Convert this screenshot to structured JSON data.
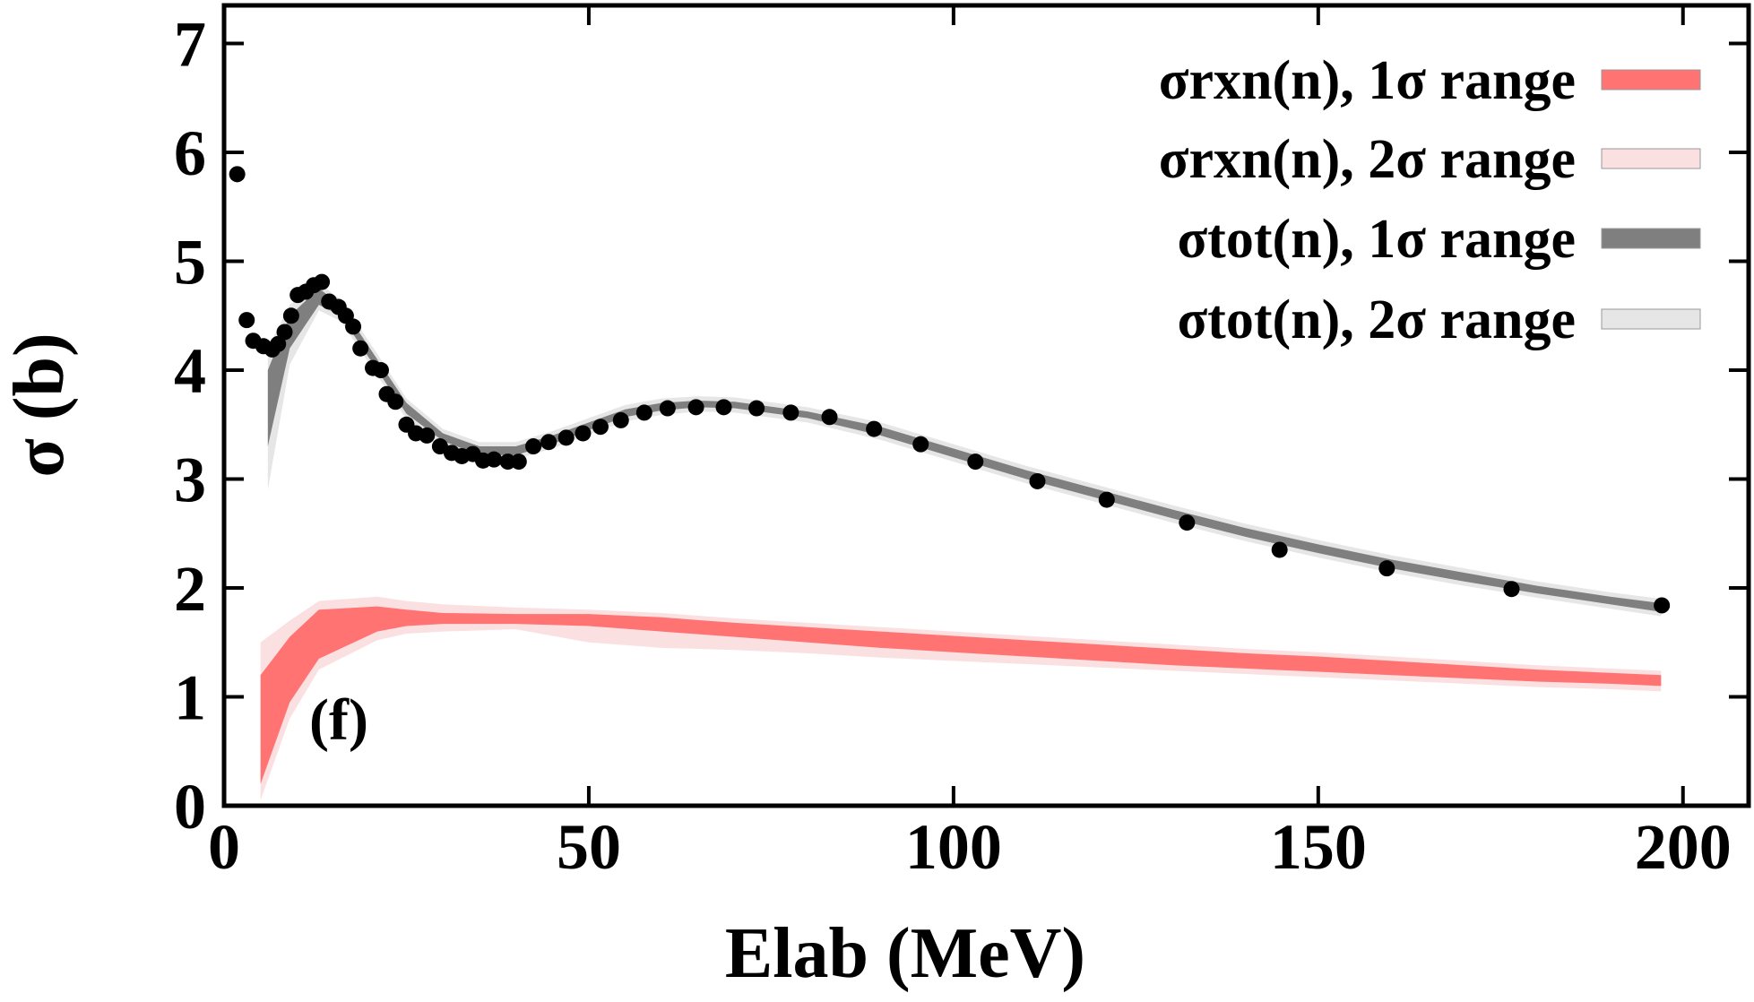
{
  "chart_data": {
    "type": "band-scatter",
    "x_label": "Elab (MeV)",
    "y_label": "σ (b)",
    "annotation": "(f)",
    "xlim": [
      0,
      209
    ],
    "ylim": [
      0,
      7.35
    ],
    "xticks": [
      0,
      50,
      100,
      150,
      200
    ],
    "yticks": [
      0,
      1,
      2,
      3,
      4,
      5,
      6,
      7
    ],
    "legend": "upper right",
    "series": [
      {
        "name": "σrxn(n), 2σ range",
        "color": "#fbe0e1",
        "x": [
          5,
          9,
          13,
          21,
          25,
          30,
          40,
          50,
          60,
          70,
          80,
          90,
          100,
          110,
          120,
          130,
          140,
          150,
          160,
          170,
          180,
          190,
          197
        ],
        "lower": [
          0.05,
          0.8,
          1.25,
          1.52,
          1.58,
          1.6,
          1.62,
          1.5,
          1.45,
          1.43,
          1.4,
          1.36,
          1.33,
          1.3,
          1.27,
          1.24,
          1.21,
          1.18,
          1.15,
          1.12,
          1.09,
          1.07,
          1.05
        ],
        "upper": [
          1.5,
          1.7,
          1.88,
          1.92,
          1.88,
          1.85,
          1.82,
          1.8,
          1.77,
          1.72,
          1.68,
          1.64,
          1.6,
          1.56,
          1.52,
          1.48,
          1.44,
          1.41,
          1.37,
          1.33,
          1.29,
          1.26,
          1.24
        ]
      },
      {
        "name": "σrxn(n), 1σ range",
        "color": "#ff7373",
        "x": [
          5,
          9,
          13,
          21,
          25,
          30,
          40,
          50,
          60,
          70,
          80,
          90,
          100,
          110,
          120,
          130,
          140,
          150,
          160,
          170,
          180,
          190,
          197
        ],
        "lower": [
          0.2,
          0.95,
          1.35,
          1.6,
          1.65,
          1.67,
          1.67,
          1.65,
          1.6,
          1.55,
          1.5,
          1.45,
          1.41,
          1.37,
          1.33,
          1.29,
          1.26,
          1.23,
          1.2,
          1.17,
          1.14,
          1.12,
          1.1
        ],
        "upper": [
          1.2,
          1.55,
          1.8,
          1.83,
          1.8,
          1.77,
          1.76,
          1.76,
          1.73,
          1.68,
          1.64,
          1.6,
          1.56,
          1.52,
          1.48,
          1.44,
          1.4,
          1.37,
          1.33,
          1.29,
          1.25,
          1.22,
          1.2
        ]
      },
      {
        "name": "σtot(n), 2σ range",
        "color": "#e6e6e6",
        "x": [
          6,
          9,
          13,
          16,
          21,
          25,
          30,
          35,
          40,
          45,
          50,
          55,
          60,
          65,
          70,
          80,
          90,
          100,
          110,
          120,
          130,
          140,
          150,
          160,
          170,
          180,
          190,
          197
        ],
        "lower": [
          2.9,
          4.05,
          4.55,
          4.45,
          3.95,
          3.55,
          3.31,
          3.18,
          3.18,
          3.28,
          3.41,
          3.53,
          3.59,
          3.62,
          3.61,
          3.52,
          3.36,
          3.16,
          2.96,
          2.78,
          2.6,
          2.43,
          2.28,
          2.14,
          2.02,
          1.91,
          1.81,
          1.74
        ],
        "upper": [
          4.2,
          4.6,
          4.8,
          4.65,
          4.15,
          3.74,
          3.46,
          3.34,
          3.34,
          3.44,
          3.56,
          3.68,
          3.74,
          3.76,
          3.75,
          3.66,
          3.52,
          3.32,
          3.12,
          2.94,
          2.76,
          2.59,
          2.44,
          2.3,
          2.18,
          2.06,
          1.96,
          1.9
        ]
      },
      {
        "name": "σtot(n), 1σ range",
        "color": "#7f7f7f",
        "x": [
          6,
          9,
          13,
          16,
          21,
          25,
          30,
          35,
          40,
          45,
          50,
          55,
          60,
          65,
          70,
          80,
          90,
          100,
          110,
          120,
          130,
          140,
          150,
          160,
          170,
          180,
          190,
          197
        ],
        "lower": [
          3.3,
          4.2,
          4.6,
          4.5,
          4.0,
          3.6,
          3.35,
          3.22,
          3.22,
          3.32,
          3.45,
          3.57,
          3.63,
          3.66,
          3.65,
          3.56,
          3.4,
          3.2,
          3.0,
          2.82,
          2.64,
          2.47,
          2.32,
          2.18,
          2.06,
          1.95,
          1.85,
          1.78
        ],
        "upper": [
          4.0,
          4.5,
          4.75,
          4.6,
          4.1,
          3.7,
          3.42,
          3.3,
          3.3,
          3.4,
          3.52,
          3.64,
          3.7,
          3.72,
          3.71,
          3.62,
          3.48,
          3.28,
          3.08,
          2.9,
          2.72,
          2.55,
          2.4,
          2.26,
          2.14,
          2.02,
          1.92,
          1.86
        ]
      }
    ],
    "legend_order": [
      1,
      0,
      3,
      2
    ],
    "points": {
      "color": "#000000",
      "x": [
        1.8,
        3.1,
        4.0,
        5.4,
        6.6,
        7.4,
        8.3,
        9.2,
        10.1,
        11.2,
        12.3,
        13.4,
        14.4,
        15.7,
        16.7,
        17.7,
        18.7,
        20.4,
        21.5,
        22.3,
        23.5,
        25,
        26.3,
        27.8,
        29.6,
        31.2,
        32.6,
        34.1,
        35.5,
        37,
        38.9,
        40.4,
        42.4,
        44.5,
        46.9,
        49.2,
        51.6,
        54.4,
        57.6,
        60.8,
        64.7,
        68.5,
        73,
        77.7,
        83,
        89.1,
        95.5,
        103,
        111.5,
        121,
        132,
        144.7,
        159.4,
        176.5,
        197.1
      ],
      "y": [
        5.8,
        4.46,
        4.27,
        4.22,
        4.19,
        4.24,
        4.35,
        4.5,
        4.69,
        4.72,
        4.78,
        4.81,
        4.63,
        4.58,
        4.5,
        4.4,
        4.2,
        4.02,
        4.0,
        3.78,
        3.71,
        3.5,
        3.42,
        3.4,
        3.3,
        3.24,
        3.21,
        3.23,
        3.17,
        3.18,
        3.16,
        3.16,
        3.3,
        3.34,
        3.38,
        3.42,
        3.48,
        3.54,
        3.61,
        3.65,
        3.66,
        3.66,
        3.65,
        3.61,
        3.57,
        3.46,
        3.32,
        3.16,
        2.98,
        2.81,
        2.6,
        2.35,
        2.18,
        1.99,
        1.84
      ]
    }
  }
}
